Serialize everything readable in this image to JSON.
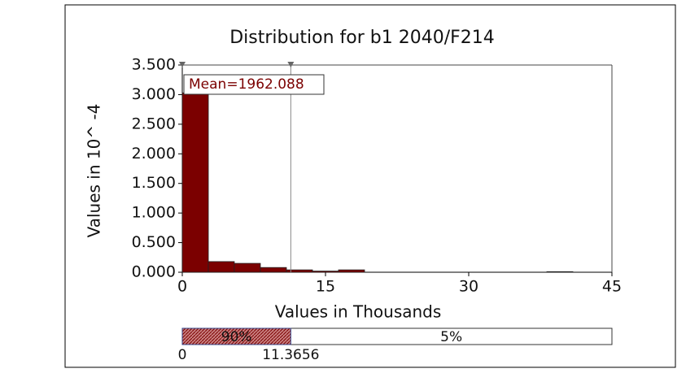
{
  "chart_data": {
    "type": "histogram",
    "title": "Distribution for b1 2040/F214",
    "y_label": "Values in 10^ -4",
    "x_label": "Values in Thousands",
    "annotation": "Mean=1962.088",
    "bins": [
      0,
      2.73,
      5.45,
      8.18,
      10.91,
      13.64,
      16.36,
      19.09,
      21.82,
      24.55,
      27.27,
      30,
      32.73,
      35.45,
      38.18,
      40.91
    ],
    "values": [
      3.03,
      0.18,
      0.15,
      0.08,
      0.04,
      0.02,
      0.04,
      0,
      0,
      0,
      0,
      0,
      0,
      0,
      0.01
    ],
    "color": "#7b0000",
    "xlim": [
      0,
      45
    ],
    "xticks": [
      0,
      15,
      30,
      45
    ],
    "ylim": [
      0,
      3.5
    ],
    "yticks": [
      {
        "value": 0,
        "label": "0.000"
      },
      {
        "value": 0.5,
        "label": "0.500"
      },
      {
        "value": 1,
        "label": "1.000"
      },
      {
        "value": 1.5,
        "label": "1.500"
      },
      {
        "value": 2,
        "label": "2.000"
      },
      {
        "value": 2.5,
        "label": "2.500"
      },
      {
        "value": 3,
        "label": "3.000"
      },
      {
        "value": 3.5,
        "label": "3.500"
      }
    ],
    "delimiters": [
      0,
      11.3656
    ],
    "middle_percent": "90%",
    "right_percent": "5%"
  }
}
